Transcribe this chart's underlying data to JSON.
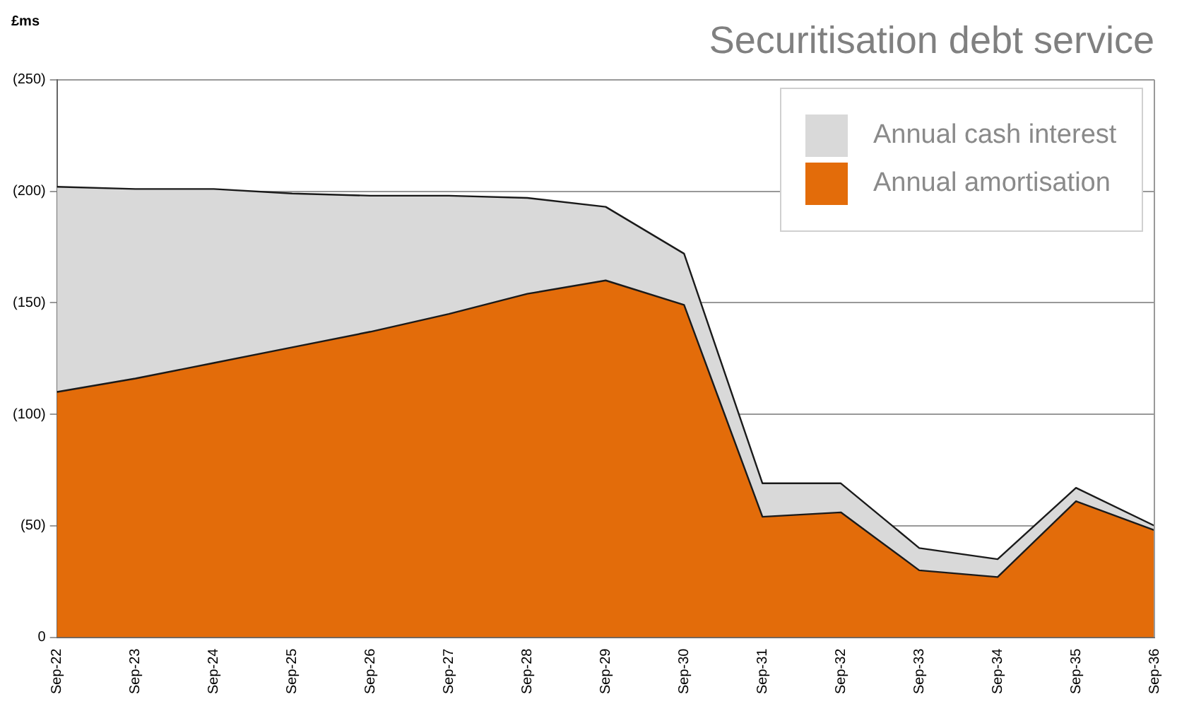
{
  "chart_data": {
    "type": "area",
    "title": "Securitisation debt service",
    "ylabel": "£ms",
    "categories": [
      "Sep-22",
      "Sep-23",
      "Sep-24",
      "Sep-25",
      "Sep-26",
      "Sep-27",
      "Sep-28",
      "Sep-29",
      "Sep-30",
      "Sep-31",
      "Sep-32",
      "Sep-33",
      "Sep-34",
      "Sep-35",
      "Sep-36"
    ],
    "stacked": true,
    "series": [
      {
        "name": "Annual amortisation",
        "color": "#e36c0a",
        "values": [
          110,
          116,
          123,
          130,
          137,
          145,
          154,
          160,
          149,
          54,
          56,
          30,
          27,
          61,
          48
        ]
      },
      {
        "name": "Annual cash interest",
        "color": "#d9d9d9",
        "values": [
          92,
          85,
          78,
          69,
          61,
          53,
          43,
          33,
          23,
          15,
          13,
          10,
          8,
          6,
          2
        ]
      }
    ],
    "ylim": [
      0,
      250
    ],
    "yticks": [
      0,
      {
        "value": 50,
        "label": "(50)"
      },
      {
        "value": 100,
        "label": "(100)"
      },
      {
        "value": 150,
        "label": "(150)"
      },
      {
        "value": 200,
        "label": "(200)"
      },
      {
        "value": 250,
        "label": "(250)"
      }
    ],
    "grid": "y",
    "legend": "top right"
  }
}
